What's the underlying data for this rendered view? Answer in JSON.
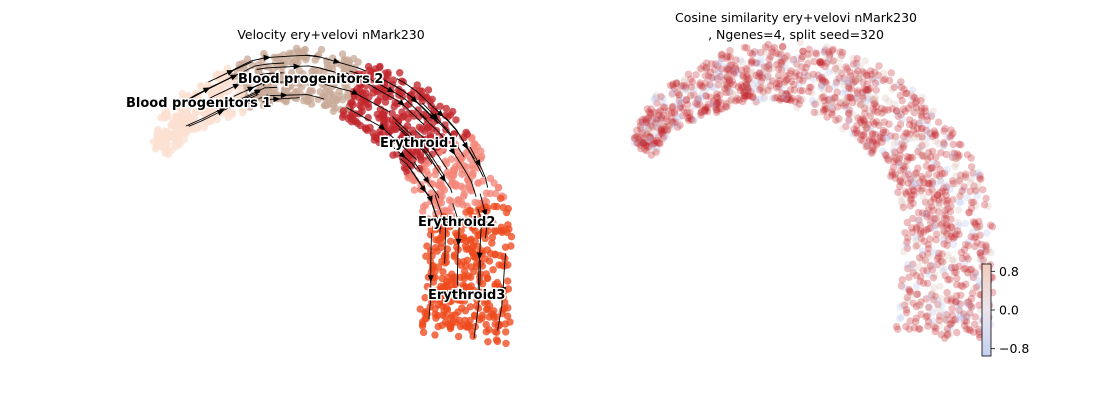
{
  "chart_data": [
    {
      "type": "scatter",
      "title": "Velocity ery+velovi nMark230",
      "overlay": "velocity stream arrows",
      "legend": "on data",
      "clusters": [
        {
          "name": "Blood progenitors 1",
          "color": "#fbe0d2"
        },
        {
          "name": "Blood progenitors 2",
          "color": "#c9ab98"
        },
        {
          "name": "Erythroid1",
          "color": "#c1272d"
        },
        {
          "name": "Erythroid2",
          "color": "#f4877a"
        },
        {
          "name": "Erythroid3",
          "color": "#ee4a1e"
        }
      ]
    },
    {
      "type": "scatter",
      "title": "Cosine similarity ery+velovi nMark230",
      "subtitle": ", Ngenes=4, split seed=320",
      "colormap": "coolwarm",
      "colorbar": {
        "ticks": [
          0.8,
          0.0,
          -0.8
        ],
        "tick_labels": [
          "0.8",
          "0.0",
          "−0.8"
        ],
        "range": [
          -0.95,
          0.95
        ]
      },
      "colors": {
        "high": "#c4232a",
        "mid": "#dcc0b5",
        "low": "#b8c8ef"
      }
    }
  ]
}
